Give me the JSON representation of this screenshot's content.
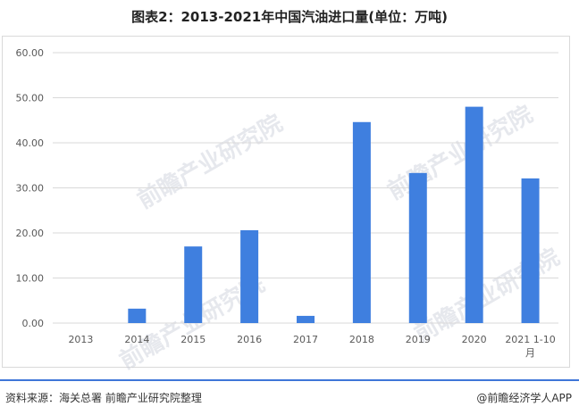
{
  "title": "图表2：2013-2021年中国汽油进口量(单位：万吨)",
  "watermark": "前瞻产业研究院",
  "footer": {
    "source": "资料来源：海关总署 前瞻产业研究院整理",
    "brand": "@前瞻经济学人APP"
  },
  "colors": {
    "bar": "#3f7fdf",
    "grid": "#d9d9d9",
    "footer_line": "#3f76d8"
  },
  "chart_data": {
    "type": "bar",
    "categories": [
      "2013",
      "2014",
      "2015",
      "2016",
      "2017",
      "2018",
      "2019",
      "2020",
      "2021 1-10月"
    ],
    "values": [
      0.0,
      3.2,
      17.0,
      20.6,
      1.6,
      44.6,
      33.3,
      48.0,
      32.1
    ],
    "ylim": [
      0,
      60
    ],
    "yticks": [
      "0.00",
      "10.00",
      "20.00",
      "30.00",
      "40.00",
      "50.00",
      "60.00"
    ],
    "grid": true,
    "legend": "none"
  }
}
